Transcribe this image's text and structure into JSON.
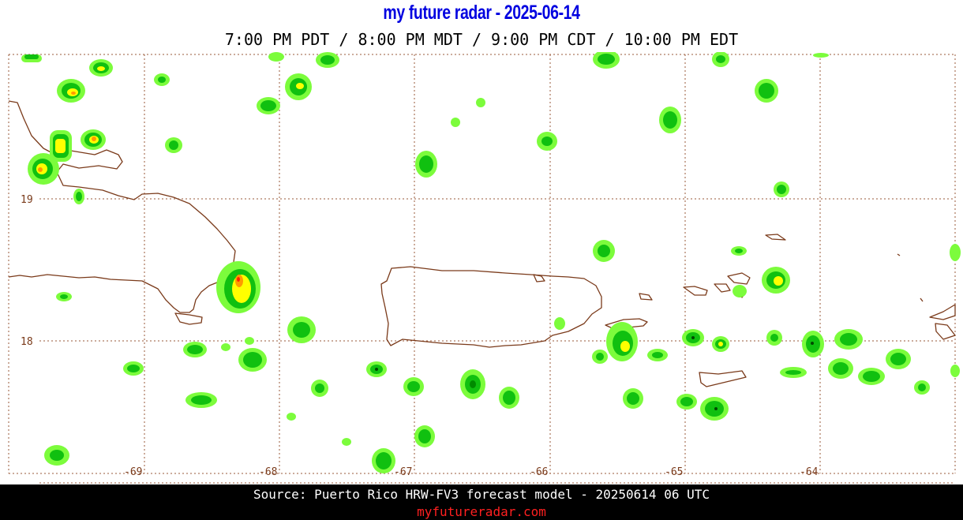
{
  "header": {
    "title": "my future radar - 2025-06-14",
    "times": "7:00 PM PDT /  8:00 PM MDT /  9:00 PM CDT / 10:00 PM EDT"
  },
  "map": {
    "lat_labels": [
      {
        "label": "19"
      },
      {
        "label": "18"
      }
    ],
    "lon_labels": [
      {
        "label": "-69"
      },
      {
        "label": "-68"
      },
      {
        "label": "-67"
      },
      {
        "label": "-66"
      },
      {
        "label": "-65"
      },
      {
        "label": "-64"
      }
    ],
    "colors": {
      "coast": "#7a3a1a",
      "grid": "#9a5a3a",
      "light_green": "#7cfc3c",
      "green": "#10c010",
      "dark_green": "#008a00",
      "yellow": "#ffff00",
      "orange": "#ff9a00",
      "red": "#ff2000"
    }
  },
  "footer": {
    "source": "Source: Puerto Rico HRW-FV3 forecast model - 20250614 06 UTC",
    "site": "myfutureradar.com"
  }
}
